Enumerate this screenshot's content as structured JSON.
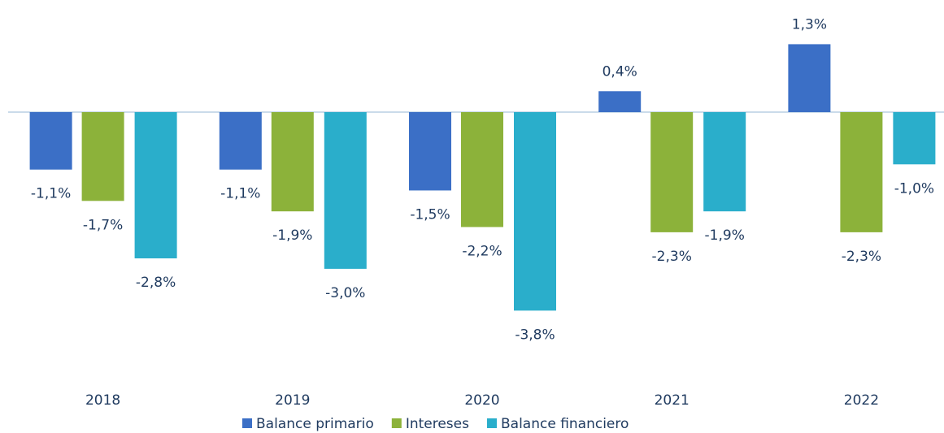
{
  "chart_data": {
    "type": "bar",
    "categories": [
      "2018",
      "2019",
      "2020",
      "2021",
      "2022"
    ],
    "series": [
      {
        "name": "Balance primario",
        "color": "#3b6fc6",
        "values": [
          -1.1,
          -1.1,
          -1.5,
          0.4,
          1.3
        ],
        "value_labels": [
          "-1,1%",
          "-1,1%",
          "-1,5%",
          "0,4%",
          "1,3%"
        ]
      },
      {
        "name": "Intereses",
        "color": "#8cb23a",
        "values": [
          -1.7,
          -1.9,
          -2.2,
          -2.3,
          -2.3
        ],
        "value_labels": [
          "-1,7%",
          "-1,9%",
          "-2,2%",
          "-2,3%",
          "-2,3%"
        ]
      },
      {
        "name": "Balance financiero",
        "color": "#2aaecb",
        "values": [
          -2.8,
          -3.0,
          -3.8,
          -1.9,
          -1.0
        ],
        "value_labels": [
          "-2,8%",
          "-3,0%",
          "-3,8%",
          "-1,9%",
          "-1,0%"
        ]
      }
    ],
    "legend": "bottom"
  }
}
